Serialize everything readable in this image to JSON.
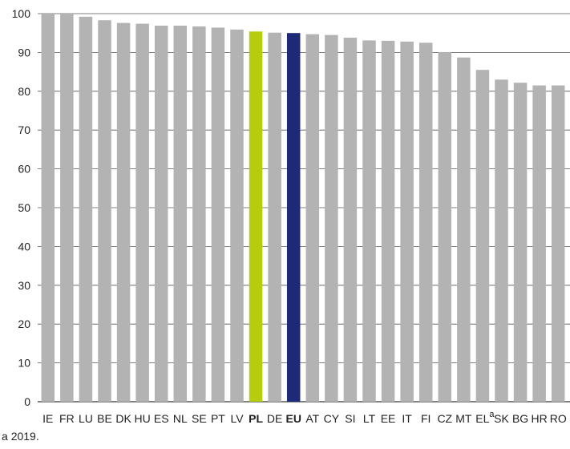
{
  "chart_data": {
    "type": "bar",
    "categories": [
      "IE",
      "FR",
      "LU",
      "BE",
      "DK",
      "HU",
      "ES",
      "NL",
      "SE",
      "PT",
      "LV",
      "PL",
      "DE",
      "EU",
      "AT",
      "CY",
      "SI",
      "LT",
      "EE",
      "IT",
      "FI",
      "CZ",
      "MT",
      "EL",
      "SK",
      "BG",
      "HR",
      "RO"
    ],
    "values": [
      100,
      100,
      99.2,
      98.3,
      97.6,
      97.4,
      96.9,
      96.9,
      96.7,
      96.4,
      95.9,
      95.4,
      95.1,
      95.0,
      94.7,
      94.5,
      93.8,
      93.1,
      93.0,
      92.8,
      92.5,
      90.1,
      88.7,
      85.5,
      83.0,
      82.2,
      81.5,
      81.5
    ],
    "category_notes": {
      "EL": "a"
    },
    "highlight": {
      "PL": "#b5cc0f",
      "EU": "#1e2a78"
    },
    "bold_categories": [
      "PL",
      "EU"
    ],
    "bar_color": "#b3b3b3",
    "ylim": [
      0,
      100
    ],
    "yticks": [
      0,
      10,
      20,
      30,
      40,
      50,
      60,
      70,
      80,
      90,
      100
    ],
    "grid": true,
    "title": "",
    "xlabel": "",
    "ylabel": ""
  },
  "footnote": {
    "marker": "a",
    "text": "2019."
  }
}
